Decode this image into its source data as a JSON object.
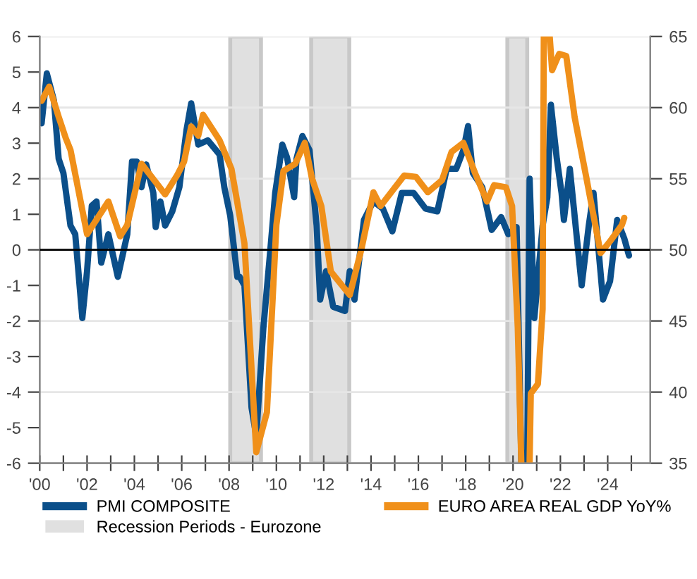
{
  "chart_data": {
    "type": "line",
    "xlim": [
      2000,
      2025.8
    ],
    "xticks": [
      {
        "value": 2000,
        "label": "'00"
      },
      {
        "value": 2001,
        "label": null
      },
      {
        "value": 2002,
        "label": "'02"
      },
      {
        "value": 2003,
        "label": null
      },
      {
        "value": 2004,
        "label": "'04"
      },
      {
        "value": 2005,
        "label": null
      },
      {
        "value": 2006,
        "label": "'06"
      },
      {
        "value": 2007,
        "label": null
      },
      {
        "value": 2008,
        "label": "'08"
      },
      {
        "value": 2009,
        "label": null
      },
      {
        "value": 2010,
        "label": "'10"
      },
      {
        "value": 2011,
        "label": null
      },
      {
        "value": 2012,
        "label": "'12"
      },
      {
        "value": 2013,
        "label": null
      },
      {
        "value": 2014,
        "label": "'14"
      },
      {
        "value": 2015,
        "label": null
      },
      {
        "value": 2016,
        "label": "'16"
      },
      {
        "value": 2017,
        "label": null
      },
      {
        "value": 2018,
        "label": "'18"
      },
      {
        "value": 2019,
        "label": null
      },
      {
        "value": 2020,
        "label": "'20"
      },
      {
        "value": 2021,
        "label": null
      },
      {
        "value": 2022,
        "label": "'22"
      },
      {
        "value": 2023,
        "label": null
      },
      {
        "value": 2024,
        "label": "'24"
      },
      {
        "value": 2025,
        "label": null
      }
    ],
    "ylim": [
      -6,
      6
    ],
    "yticks": [
      -6,
      -5,
      -4,
      -3,
      -2,
      -1,
      0,
      1,
      2,
      3,
      4,
      5,
      6
    ],
    "y2lim": [
      35,
      65
    ],
    "y2ticks": [
      35,
      40,
      45,
      50,
      55,
      60,
      65
    ],
    "grid": "y",
    "legend": "bottom",
    "line_style": "solid",
    "ref_lines": [
      {
        "axis": "y",
        "value": 0,
        "color": "#000000"
      }
    ],
    "bands": [
      {
        "axis": "x",
        "from": 2008.05,
        "to": 2009.35,
        "label": "Recession Periods - Eurozone",
        "color": "#e0e0e0"
      },
      {
        "axis": "x",
        "from": 2011.47,
        "to": 2013.08,
        "color": "#e0e0e0"
      },
      {
        "axis": "x",
        "from": 2019.76,
        "to": 2020.6,
        "color": "#e0e0e0"
      }
    ],
    "series": [
      {
        "name": "PMI COMPOSITE",
        "color": "#0b4f8a",
        "axis": "y2",
        "x": [
          2000.08,
          2000.3,
          2000.6,
          2000.8,
          2001.0,
          2001.3,
          2001.5,
          2001.8,
          2002.0,
          2002.2,
          2002.4,
          2002.6,
          2002.9,
          2003.3,
          2003.7,
          2003.9,
          2004.1,
          2004.3,
          2004.5,
          2004.8,
          2004.9,
          2005.1,
          2005.3,
          2005.6,
          2005.9,
          2006.2,
          2006.4,
          2006.7,
          2007.1,
          2007.6,
          2007.8,
          2008.05,
          2008.35,
          2008.45,
          2008.65,
          2008.95,
          2009.15,
          2009.45,
          2009.75,
          2009.95,
          2010.25,
          2010.45,
          2010.75,
          2010.85,
          2011.1,
          2011.4,
          2011.7,
          2011.85,
          2012.1,
          2012.4,
          2012.9,
          2013.1,
          2013.3,
          2013.7,
          2014.1,
          2014.5,
          2014.9,
          2015.3,
          2015.8,
          2016.3,
          2016.8,
          2017.2,
          2017.6,
          2017.9,
          2018.1,
          2018.3,
          2018.7,
          2019.1,
          2019.5,
          2019.8,
          2020.15,
          2020.35,
          2020.5,
          2020.6,
          2020.7,
          2020.9,
          2021.25,
          2021.45,
          2021.6,
          2021.85,
          2022.05,
          2022.15,
          2022.4,
          2022.9,
          2023.2,
          2023.4,
          2023.8,
          2024.1,
          2024.4,
          2024.7,
          2024.9
        ],
        "values": [
          58.9,
          62.4,
          60.5,
          56.4,
          55.4,
          51.7,
          51.1,
          45.2,
          48.5,
          53.1,
          53.4,
          49.1,
          51.1,
          48.1,
          51.1,
          56.2,
          56.2,
          54.4,
          56.0,
          54.0,
          51.6,
          53.4,
          51.7,
          52.7,
          54.4,
          58.4,
          60.3,
          57.4,
          57.7,
          56.7,
          54.4,
          52.4,
          48.1,
          48.1,
          47.5,
          38.9,
          36.9,
          44.5,
          50.1,
          54.0,
          57.4,
          56.5,
          53.7,
          56.4,
          58.0,
          57.0,
          51.7,
          46.5,
          48.5,
          46.0,
          45.7,
          48.5,
          46.5,
          52.1,
          53.4,
          52.9,
          51.3,
          54.0,
          54.0,
          52.9,
          52.7,
          55.7,
          55.7,
          57.0,
          58.7,
          55.4,
          54.4,
          51.4,
          52.3,
          51.1,
          51.6,
          35,
          null,
          35,
          55.0,
          45.2,
          51.7,
          53.7,
          60.2,
          56.4,
          54.0,
          52.1,
          55.7,
          47.5,
          51.7,
          54.0,
          46.5,
          47.8,
          52.1,
          50.8,
          49.6
        ]
      },
      {
        "name": "EURO AREA REAL GDP YoY%",
        "color": "#f0901a",
        "x": [
          2000.08,
          2000.4,
          2000.8,
          2001.1,
          2001.3,
          2002.0,
          2002.9,
          2003.4,
          2003.7,
          2004.3,
          2005.3,
          2005.8,
          2006.1,
          2006.4,
          2006.7,
          2006.9,
          2007.6,
          2008.1,
          2008.65,
          2009.15,
          2009.6,
          2010.0,
          2010.3,
          2010.8,
          2011.2,
          2011.5,
          2011.9,
          2012.3,
          2013.1,
          2013.6,
          2014.1,
          2014.4,
          2015.4,
          2015.9,
          2016.4,
          2017.0,
          2017.4,
          2017.9,
          2018.4,
          2018.9,
          2019.2,
          2019.7,
          2019.96,
          2020.2,
          2020.35,
          2020.5,
          2020.7,
          2020.75,
          2021.05,
          2021.25,
          2021.3,
          2021.4,
          2021.55,
          2021.65,
          2021.95,
          2022.25,
          2022.6,
          2023.1,
          2023.7,
          2024.1,
          2024.6,
          2024.7
        ],
        "values": [
          4.19,
          4.59,
          3.74,
          3.14,
          2.81,
          0.44,
          1.36,
          0.38,
          0.7,
          2.42,
          1.56,
          2.09,
          2.48,
          3.47,
          3.21,
          3.8,
          3.08,
          2.28,
          0.18,
          -5.69,
          -4.57,
          0.7,
          2.22,
          2.42,
          3.01,
          2.02,
          1.23,
          -0.61,
          -1.27,
          0.04,
          1.62,
          1.23,
          2.09,
          2.05,
          1.62,
          1.96,
          2.75,
          3.01,
          2.15,
          1.36,
          1.82,
          1.76,
          1.23,
          -2.19,
          -6,
          null,
          -6,
          -4.04,
          -3.77,
          -1.67,
          6,
          null,
          6,
          5.05,
          5.51,
          5.45,
          3.74,
          2.02,
          -0.09,
          0.24,
          0.7,
          0.9
        ]
      }
    ]
  }
}
